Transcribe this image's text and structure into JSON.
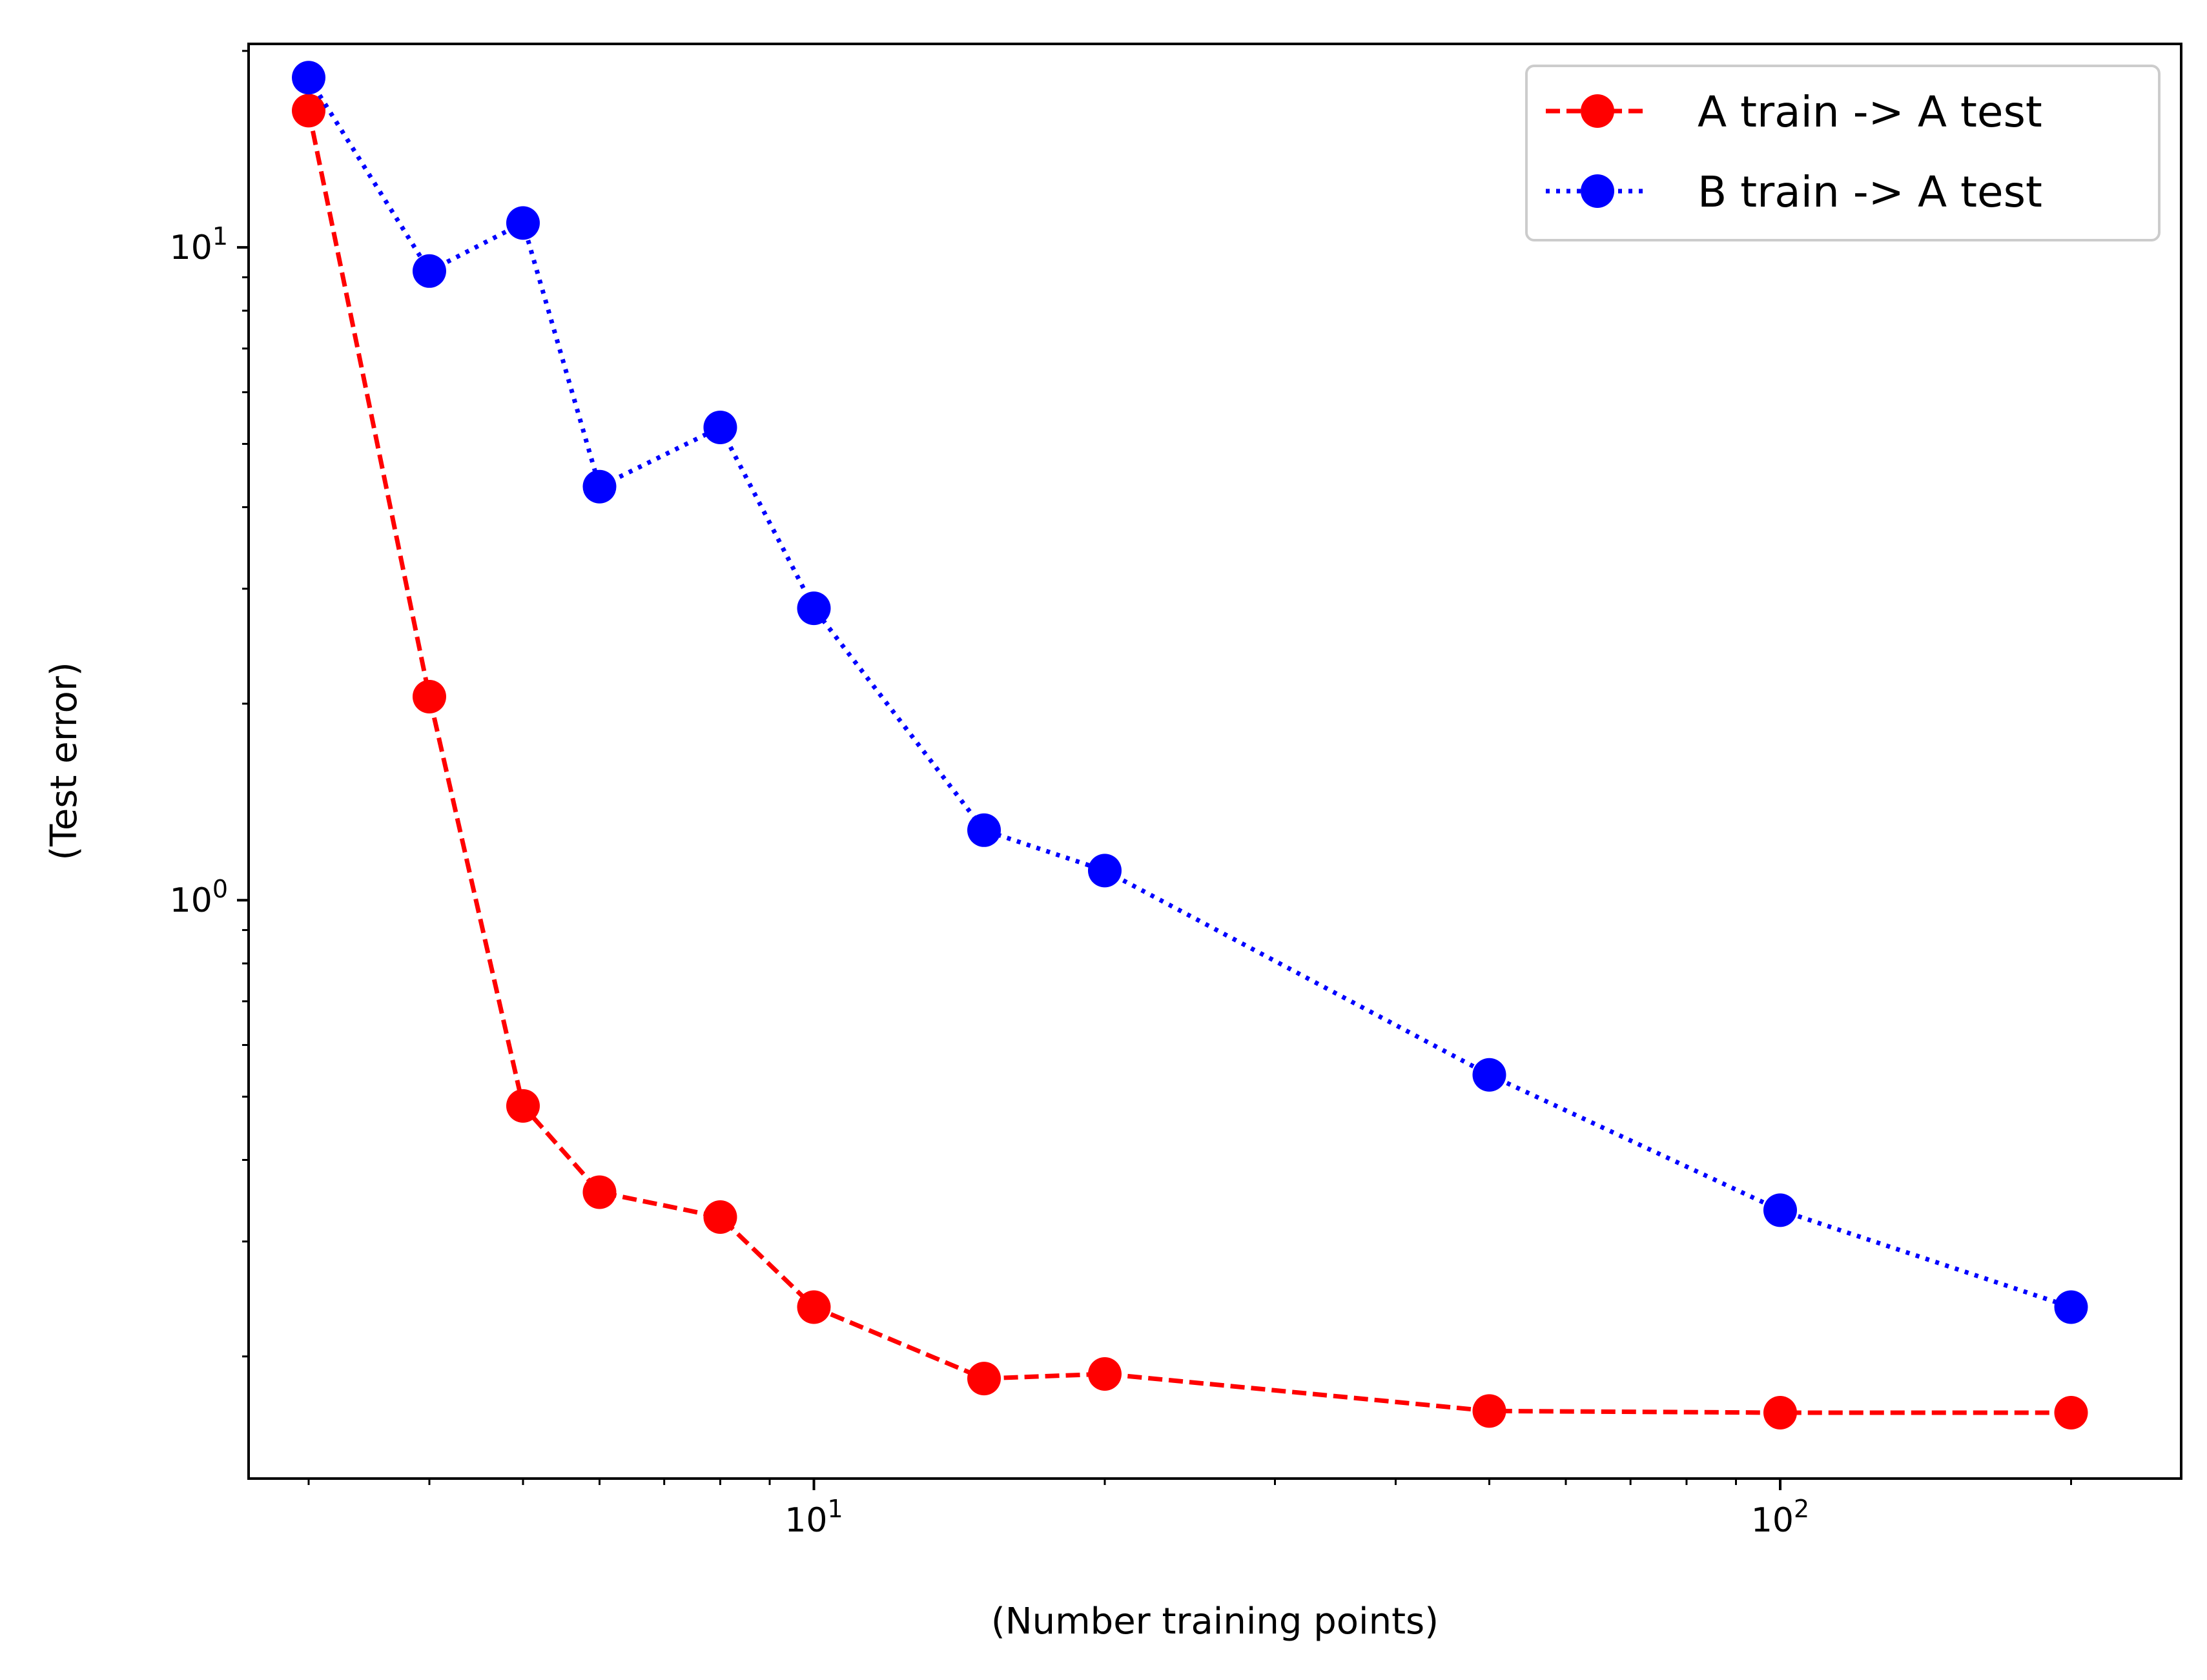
{
  "chart_data": {
    "type": "line",
    "title": "",
    "xlabel": "(Number training points)",
    "ylabel": "(Test error)",
    "xscale": "log",
    "yscale": "log",
    "xlim": [
      2.6,
      260
    ],
    "ylim": [
      0.13,
      20.5
    ],
    "grid": false,
    "legend_position": "top-right",
    "x_ticks": [
      {
        "base": "10",
        "exp": "1",
        "value": 10
      },
      {
        "base": "10",
        "exp": "2",
        "value": 100
      }
    ],
    "y_ticks": [
      {
        "base": "10",
        "exp": "0",
        "value": 1
      },
      {
        "base": "10",
        "exp": "1",
        "value": 10
      }
    ],
    "series": [
      {
        "name": "A train -> A test",
        "color": "#ff0000",
        "line_style": "dashed",
        "marker": "circle",
        "x": [
          3,
          4,
          5,
          6,
          8,
          10,
          15,
          20,
          50,
          100,
          200
        ],
        "y": [
          16.2,
          2.05,
          0.484,
          0.357,
          0.327,
          0.238,
          0.185,
          0.188,
          0.165,
          0.164,
          0.164
        ]
      },
      {
        "name": "B train -> A test",
        "color": "#0000ff",
        "line_style": "dotted",
        "marker": "circle",
        "x": [
          3,
          4,
          5,
          6,
          8,
          10,
          15,
          20,
          50,
          100,
          200
        ],
        "y": [
          18.2,
          9.2,
          10.9,
          4.3,
          5.3,
          2.8,
          1.28,
          1.11,
          0.54,
          0.335,
          0.238
        ]
      }
    ]
  }
}
